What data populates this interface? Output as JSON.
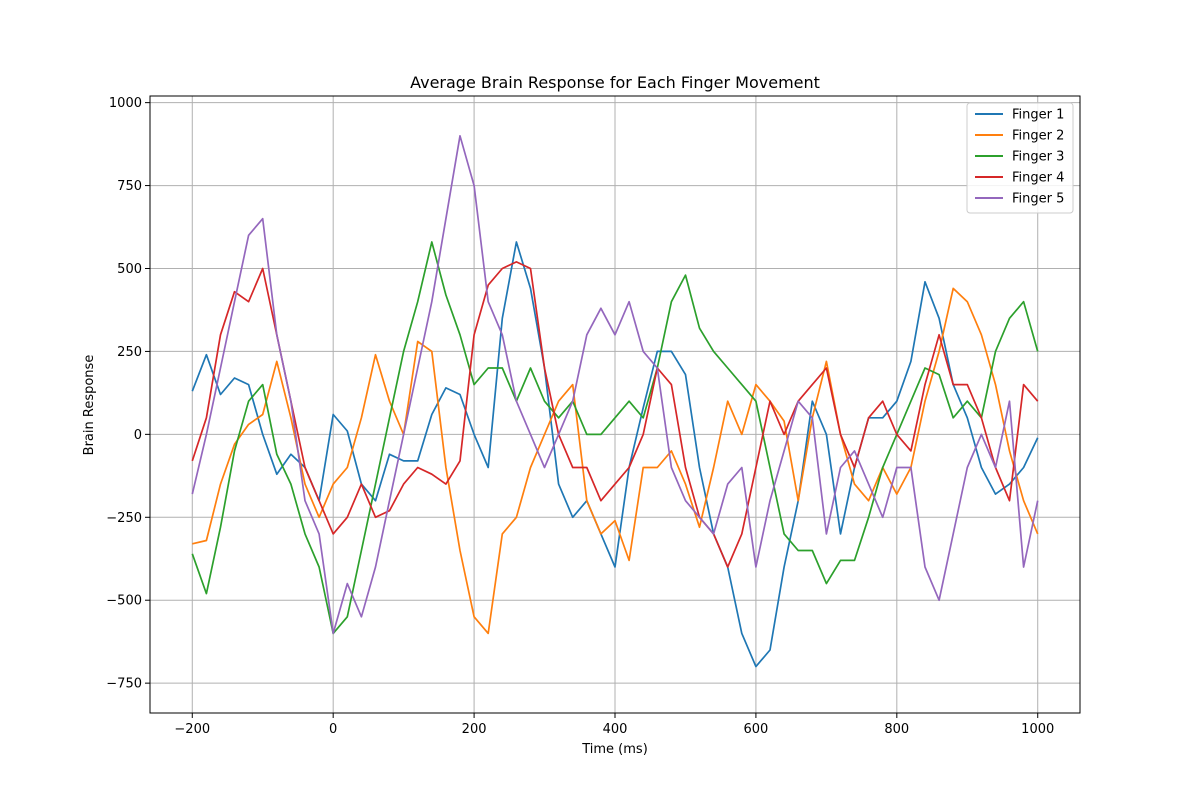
{
  "chart_data": {
    "type": "line",
    "title": "Average Brain Response for Each Finger Movement",
    "xlabel": "Time (ms)",
    "ylabel": "Brain Response",
    "xlim": [
      -260,
      1060
    ],
    "ylim": [
      -840,
      1020
    ],
    "xticks": [
      -200,
      0,
      200,
      400,
      600,
      800,
      1000
    ],
    "yticks": [
      -750,
      -500,
      -250,
      0,
      250,
      500,
      750,
      1000
    ],
    "xtick_labels": [
      "−200",
      "0",
      "200",
      "400",
      "600",
      "800",
      "1000"
    ],
    "ytick_labels": [
      "−750",
      "−500",
      "−250",
      "0",
      "250",
      "500",
      "750",
      "1000"
    ],
    "grid": true,
    "legend_position": "top-right",
    "x": [
      -200,
      -180,
      -160,
      -140,
      -120,
      -100,
      -80,
      -60,
      -40,
      -20,
      0,
      20,
      40,
      60,
      80,
      100,
      120,
      140,
      160,
      180,
      200,
      220,
      240,
      260,
      280,
      300,
      320,
      340,
      360,
      380,
      400,
      420,
      440,
      460,
      480,
      500,
      520,
      540,
      560,
      580,
      600,
      620,
      640,
      660,
      680,
      700,
      720,
      740,
      760,
      780,
      800,
      820,
      840,
      860,
      880,
      900,
      920,
      940,
      960,
      980,
      1000
    ],
    "series": [
      {
        "name": "Finger 1",
        "color": "#1f77b4",
        "values": [
          130,
          240,
          120,
          170,
          150,
          0,
          -120,
          -60,
          -100,
          -200,
          60,
          10,
          -150,
          -200,
          -60,
          -80,
          -80,
          60,
          140,
          120,
          0,
          -100,
          350,
          580,
          440,
          200,
          -150,
          -250,
          -200,
          -300,
          -400,
          -100,
          80,
          250,
          250,
          180,
          -100,
          -300,
          -400,
          -600,
          -700,
          -650,
          -400,
          -200,
          100,
          0,
          -300,
          -100,
          50,
          50,
          100,
          220,
          460,
          350,
          150,
          50,
          -100,
          -180,
          -150,
          -100,
          -10
        ]
      },
      {
        "name": "Finger 2",
        "color": "#ff7f0e",
        "values": [
          -330,
          -320,
          -150,
          -30,
          30,
          60,
          220,
          50,
          -150,
          -250,
          -150,
          -100,
          50,
          240,
          100,
          0,
          280,
          250,
          -100,
          -350,
          -550,
          -600,
          -300,
          -250,
          -100,
          0,
          100,
          150,
          -200,
          -300,
          -260,
          -380,
          -100,
          -100,
          -50,
          -150,
          -280,
          -100,
          100,
          0,
          150,
          100,
          40,
          -200,
          50,
          220,
          0,
          -150,
          -200,
          -100,
          -180,
          -100,
          100,
          250,
          440,
          400,
          300,
          150,
          -50,
          -200,
          -300
        ]
      },
      {
        "name": "Finger 3",
        "color": "#2ca02c",
        "values": [
          -360,
          -480,
          -280,
          -50,
          100,
          150,
          -60,
          -150,
          -300,
          -400,
          -600,
          -550,
          -350,
          -150,
          50,
          250,
          400,
          580,
          420,
          300,
          150,
          200,
          200,
          100,
          200,
          100,
          50,
          100,
          0,
          0,
          50,
          100,
          50,
          200,
          400,
          480,
          320,
          250,
          200,
          150,
          100,
          -100,
          -300,
          -350,
          -350,
          -450,
          -380,
          -380,
          -250,
          -100,
          0,
          100,
          200,
          180,
          50,
          100,
          50,
          250,
          350,
          400,
          250
        ]
      },
      {
        "name": "Finger 4",
        "color": "#d62728",
        "values": [
          -80,
          50,
          300,
          430,
          400,
          500,
          300,
          100,
          -100,
          -200,
          -300,
          -250,
          -150,
          -250,
          -230,
          -150,
          -100,
          -120,
          -150,
          -80,
          300,
          450,
          500,
          520,
          500,
          200,
          0,
          -100,
          -100,
          -200,
          -150,
          -100,
          0,
          200,
          150,
          -100,
          -250,
          -300,
          -400,
          -300,
          -100,
          100,
          0,
          100,
          150,
          200,
          0,
          -100,
          50,
          100,
          0,
          -50,
          150,
          300,
          150,
          150,
          50,
          -100,
          -200,
          150,
          100
        ]
      },
      {
        "name": "Finger 5",
        "color": "#9467bd",
        "values": [
          -180,
          0,
          200,
          400,
          600,
          650,
          300,
          100,
          -200,
          -300,
          -600,
          -450,
          -550,
          -400,
          -200,
          0,
          200,
          400,
          650,
          900,
          750,
          400,
          300,
          100,
          0,
          -100,
          0,
          100,
          300,
          380,
          300,
          400,
          250,
          200,
          -100,
          -200,
          -250,
          -300,
          -150,
          -100,
          -400,
          -200,
          -50,
          100,
          50,
          -300,
          -100,
          -50,
          -150,
          -250,
          -100,
          -100,
          -400,
          -500,
          -300,
          -100,
          0,
          -100,
          100,
          -400,
          -200
        ]
      }
    ]
  }
}
